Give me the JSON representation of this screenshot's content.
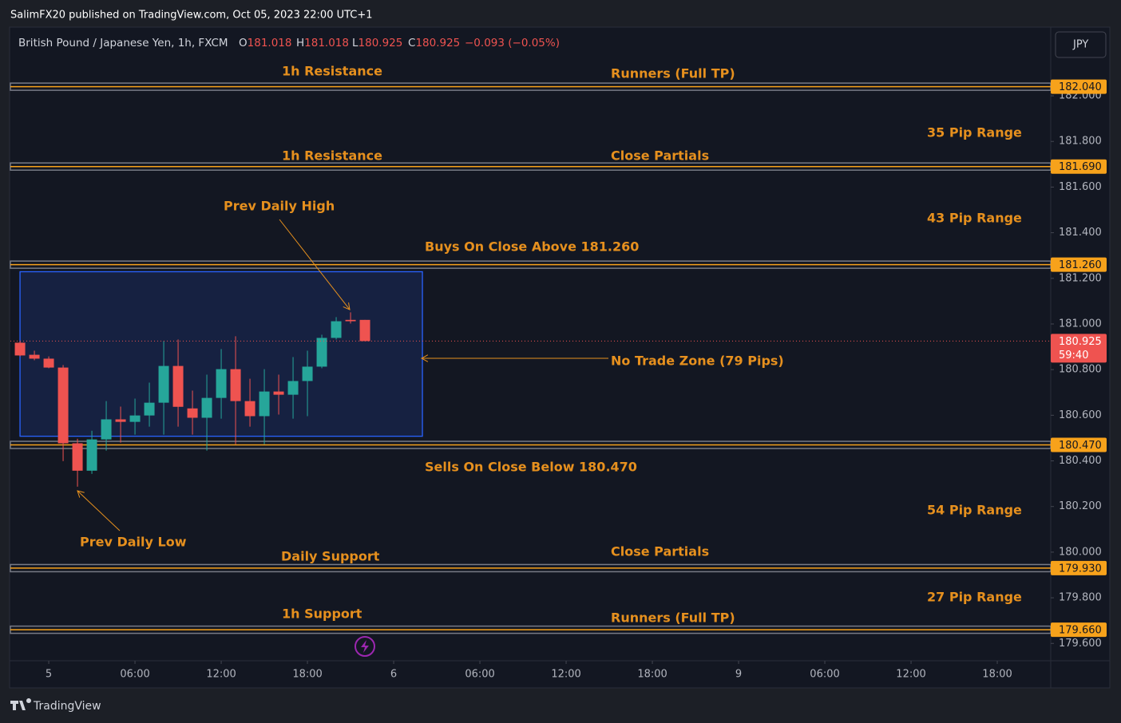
{
  "header": {
    "published": "SalimFX20 published on TradingView.com, Oct 05, 2023 22:00 UTC+1",
    "symbol": "British Pound / Japanese Yen, 1h, FXCM",
    "o_label": "O",
    "o": "181.018",
    "h_label": "H",
    "h": "181.018",
    "l_label": "L",
    "l": "180.925",
    "c_label": "C",
    "c": "180.925",
    "change": "−0.093 (−0.05%)",
    "currency": "JPY",
    "countdown": "59:40",
    "brand": "TradingView"
  },
  "chart_data": {
    "type": "candlestick",
    "up_color": "#26a69a",
    "down_color": "#ef5350",
    "level_color": "#f7a21b",
    "x": [
      -2,
      -1,
      0,
      1,
      2,
      3,
      4,
      5,
      6,
      7,
      8,
      9,
      10,
      11,
      12,
      13,
      14,
      15,
      16,
      17,
      18,
      19,
      20,
      21,
      22
    ],
    "open": [
      180.918,
      180.865,
      180.848,
      180.809,
      180.477,
      180.357,
      180.494,
      180.582,
      180.571,
      180.599,
      180.655,
      180.816,
      180.63,
      180.589,
      180.676,
      180.802,
      180.662,
      180.596,
      180.704,
      180.69,
      180.75,
      180.813,
      180.939,
      181.018,
      181.018
    ],
    "high": [
      180.925,
      180.883,
      180.858,
      180.82,
      180.497,
      180.532,
      180.662,
      180.638,
      180.673,
      180.743,
      180.925,
      180.932,
      180.708,
      180.778,
      180.89,
      180.946,
      180.76,
      180.802,
      180.778,
      180.855,
      180.883,
      180.953,
      181.03,
      181.051,
      181.018
    ],
    "low": [
      180.858,
      180.841,
      180.806,
      180.399,
      180.287,
      180.343,
      180.445,
      180.48,
      180.515,
      180.55,
      180.515,
      180.55,
      180.515,
      180.445,
      180.585,
      180.473,
      180.55,
      180.473,
      180.603,
      180.585,
      180.596,
      180.806,
      180.932,
      181.002,
      180.925
    ],
    "close": [
      180.862,
      180.848,
      180.809,
      180.477,
      180.357,
      180.494,
      180.582,
      180.571,
      180.599,
      180.655,
      180.816,
      180.637,
      180.589,
      180.676,
      180.802,
      180.662,
      180.596,
      180.704,
      180.69,
      180.75,
      180.813,
      180.939,
      181.012,
      181.012,
      180.925
    ],
    "xlim": [
      -2.67,
      69.72
    ],
    "xticks": [
      {
        "value": 0,
        "label": "5"
      },
      {
        "value": 6,
        "label": "06:00"
      },
      {
        "value": 12,
        "label": "12:00"
      },
      {
        "value": 18,
        "label": "18:00"
      },
      {
        "value": 24,
        "label": "6"
      },
      {
        "value": 30,
        "label": "06:00"
      },
      {
        "value": 36,
        "label": "12:00"
      },
      {
        "value": 42,
        "label": "18:00"
      },
      {
        "value": 48,
        "label": "9"
      },
      {
        "value": 54,
        "label": "06:00"
      },
      {
        "value": 60,
        "label": "12:00"
      },
      {
        "value": 66,
        "label": "18:00"
      }
    ],
    "ylim": [
      179.524,
      182.301
    ],
    "yticks": [
      {
        "value": 179.6,
        "label": "179.600"
      },
      {
        "value": 179.8,
        "label": "179.800"
      },
      {
        "value": 180.0,
        "label": "180.000"
      },
      {
        "value": 180.2,
        "label": "180.200"
      },
      {
        "value": 180.4,
        "label": "180.400"
      },
      {
        "value": 180.6,
        "label": "180.600"
      },
      {
        "value": 180.8,
        "label": "180.800"
      },
      {
        "value": 181.0,
        "label": "181.000"
      },
      {
        "value": 181.2,
        "label": "181.200"
      },
      {
        "value": 181.4,
        "label": "181.400"
      },
      {
        "value": 181.6,
        "label": "181.600"
      },
      {
        "value": 181.8,
        "label": "181.800"
      },
      {
        "value": 182.0,
        "label": "182.000"
      }
    ],
    "levels": [
      {
        "value": 182.04,
        "label": "182.040"
      },
      {
        "value": 181.69,
        "label": "181.690"
      },
      {
        "value": 181.26,
        "label": "181.260"
      },
      {
        "value": 180.47,
        "label": "180.470"
      },
      {
        "value": 179.93,
        "label": "179.930"
      },
      {
        "value": 179.66,
        "label": "179.660"
      }
    ],
    "zone": {
      "x": [
        -2,
        26
      ],
      "y": [
        180.508,
        181.229
      ]
    },
    "annotations": [
      "1h Resistance",
      "Runners (Full TP)",
      "35 Pip Range",
      "1h Resistance",
      "Close Partials",
      "43 Pip Range",
      "Prev Daily High",
      "Buys On Close Above 181.260",
      "No Trade Zone (79 Pips)",
      "Sells On Close Below 180.470",
      "54 Pip Range",
      "Prev Daily Low",
      "Daily Support",
      "Close Partials",
      "27 Pip Range",
      "1h Support",
      "Runners (Full TP)"
    ]
  }
}
